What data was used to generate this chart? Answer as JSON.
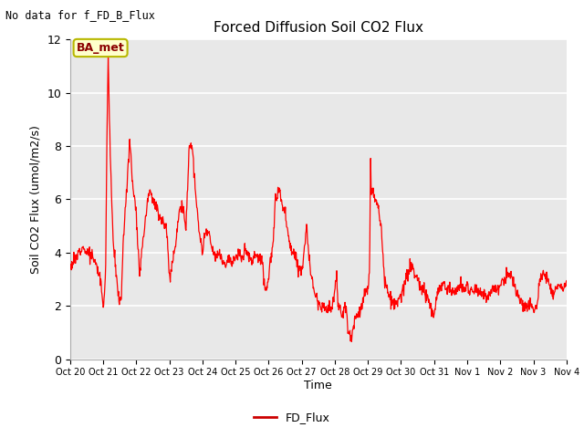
{
  "title": "Forced Diffusion Soil CO2 Flux",
  "xlabel": "Time",
  "ylabel": "Soil CO2 Flux (umol/m2/s)",
  "no_data_text": "No data for f_FD_B_Flux",
  "legend_label": "FD_Flux",
  "line_color": "red",
  "fig_bg_color": "#ffffff",
  "plot_bg_color": "#e8e8e8",
  "grid_color": "#ffffff",
  "ba_met_box_color": "#ffffcc",
  "ba_met_text_color": "#8b0000",
  "ba_met_edge_color": "#b8b800",
  "ylim": [
    0,
    12
  ],
  "yticks": [
    0,
    2,
    4,
    6,
    8,
    10,
    12
  ],
  "xtick_labels": [
    "Oct 20",
    "Oct 21",
    "Oct 22",
    "Oct 23",
    "Oct 24",
    "Oct 25",
    "Oct 26",
    "Oct 27",
    "Oct 28",
    "Oct 29",
    "Oct 30",
    "Oct 31",
    "Nov 1",
    "Nov 2",
    "Nov 3",
    "Nov 4"
  ],
  "key_times": [
    0.0,
    0.2,
    0.35,
    0.5,
    0.65,
    0.8,
    0.9,
    1.0,
    1.05,
    1.08,
    1.1,
    1.12,
    1.15,
    1.18,
    1.22,
    1.3,
    1.4,
    1.5,
    1.55,
    1.6,
    1.7,
    1.8,
    1.9,
    2.0,
    2.05,
    2.1,
    2.2,
    2.3,
    2.4,
    2.5,
    2.6,
    2.7,
    2.8,
    2.9,
    3.0,
    3.05,
    3.1,
    3.15,
    3.2,
    3.3,
    3.4,
    3.5,
    3.6,
    3.7,
    3.8,
    3.9,
    4.0,
    4.1,
    4.2,
    4.3,
    4.4,
    4.5,
    4.6,
    4.7,
    4.8,
    4.9,
    5.0,
    5.1,
    5.2,
    5.3,
    5.4,
    5.5,
    5.6,
    5.7,
    5.8,
    5.9,
    6.0,
    6.05,
    6.1,
    6.15,
    6.2,
    6.3,
    6.35,
    6.4,
    6.5,
    6.6,
    6.7,
    6.8,
    6.9,
    7.0,
    7.05,
    7.1,
    7.15,
    7.2,
    7.3,
    7.4,
    7.5,
    7.6,
    7.7,
    7.8,
    7.9,
    8.0,
    8.05,
    8.08,
    8.1,
    8.15,
    8.2,
    8.3,
    8.35,
    8.4,
    8.5,
    8.6,
    8.7,
    8.8,
    8.9,
    9.0,
    9.02,
    9.05,
    9.08,
    9.1,
    9.2,
    9.3,
    9.4,
    9.5,
    9.6,
    9.7,
    9.8,
    9.9,
    10.0,
    10.1,
    10.2,
    10.3,
    10.4,
    10.5,
    10.6,
    10.7,
    10.8,
    10.9,
    11.0,
    11.1,
    11.2,
    11.3,
    11.4,
    11.5,
    11.6,
    11.7,
    11.8,
    11.9,
    12.0,
    12.1,
    12.2,
    12.3,
    12.4,
    12.5,
    12.6,
    12.7,
    12.8,
    12.9,
    13.0,
    13.1,
    13.2,
    13.3,
    13.4,
    13.5,
    13.6,
    13.7,
    13.8,
    13.9,
    14.0,
    14.1,
    14.2,
    14.3,
    14.4,
    14.5,
    14.6,
    14.7,
    14.8,
    14.9,
    15.0
  ],
  "key_vals": [
    3.5,
    3.8,
    4.3,
    4.0,
    3.9,
    3.5,
    3.1,
    2.1,
    2.5,
    4.0,
    6.7,
    9.0,
    11.5,
    9.5,
    7.5,
    4.5,
    3.0,
    2.1,
    2.3,
    4.4,
    6.1,
    8.2,
    6.5,
    5.5,
    4.3,
    3.2,
    4.5,
    5.5,
    6.5,
    6.0,
    5.7,
    5.4,
    5.2,
    5.0,
    3.2,
    3.3,
    3.7,
    4.1,
    4.5,
    5.6,
    5.8,
    4.8,
    8.1,
    7.9,
    6.0,
    4.8,
    4.0,
    4.8,
    4.7,
    4.0,
    3.8,
    4.0,
    3.7,
    3.6,
    3.8,
    3.6,
    3.8,
    3.9,
    3.8,
    4.2,
    3.8,
    3.7,
    3.9,
    3.8,
    3.8,
    2.5,
    3.0,
    3.8,
    4.0,
    4.6,
    5.8,
    6.4,
    6.2,
    5.8,
    5.5,
    4.5,
    4.0,
    3.9,
    3.5,
    3.3,
    3.8,
    4.5,
    5.0,
    4.0,
    3.0,
    2.5,
    2.2,
    2.0,
    1.9,
    2.0,
    1.8,
    2.5,
    3.3,
    2.5,
    2.0,
    1.9,
    1.5,
    2.0,
    1.9,
    1.0,
    0.7,
    1.5,
    1.7,
    1.9,
    2.5,
    2.5,
    2.7,
    3.3,
    7.5,
    6.4,
    6.0,
    5.9,
    5.0,
    3.0,
    2.5,
    2.2,
    2.0,
    2.1,
    2.3,
    2.8,
    3.2,
    3.5,
    3.2,
    3.0,
    2.7,
    2.5,
    2.3,
    2.0,
    1.5,
    2.5,
    2.7,
    2.8,
    2.7,
    2.6,
    2.5,
    2.6,
    2.8,
    2.6,
    2.8,
    2.5,
    2.6,
    2.7,
    2.5,
    2.4,
    2.3,
    2.5,
    2.8,
    2.6,
    2.8,
    2.9,
    3.1,
    3.2,
    2.8,
    2.5,
    2.2,
    2.0,
    1.9,
    2.1,
    1.9,
    2.0,
    3.0,
    3.2,
    3.1,
    2.8,
    2.5,
    2.7,
    2.8,
    2.6,
    2.8
  ]
}
